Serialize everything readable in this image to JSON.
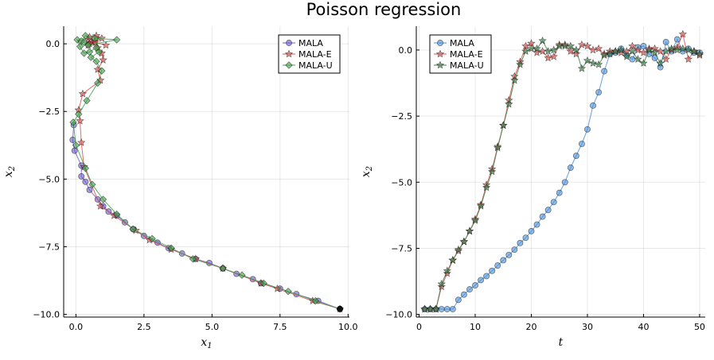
{
  "title": "Poisson regression",
  "colors": {
    "MALA": "#6a5acd",
    "MALA-E": "#d9534f",
    "MALA-U": "#3fa04a",
    "MALA_t": "#4a90d9",
    "MALA-E_t": "#d9534f",
    "MALA-U_t": "#3a7d44"
  },
  "chart_data": [
    {
      "type": "line",
      "xlabel": "x",
      "xlabel_sub": "1",
      "ylabel": "x",
      "ylabel_sub": "2",
      "xlim": [
        -0.45,
        10.05
      ],
      "ylim": [
        -10.1,
        0.65
      ],
      "xticks": [
        0.0,
        2.5,
        5.0,
        7.5,
        10.0
      ],
      "xtick_labels": [
        "0.0",
        "2.5",
        "5.0",
        "7.5",
        "10.0"
      ],
      "yticks": [
        0.0,
        -2.5,
        -5.0,
        -7.5,
        -10.0
      ],
      "ytick_labels": [
        "0.0",
        "−2.5",
        "−5.0",
        "−7.5",
        "−10.0"
      ],
      "legend": {
        "position": "top-right",
        "entries": [
          "MALA",
          "MALA-E",
          "MALA-U"
        ]
      },
      "series": [
        {
          "name": "MALA",
          "marker": "circle",
          "x": [
            9.7,
            8.9,
            8.1,
            7.5,
            6.8,
            6.5,
            5.9,
            5.4,
            4.9,
            4.4,
            3.9,
            3.4,
            3.0,
            2.5,
            2.1,
            1.8,
            1.5,
            1.2,
            1.0,
            0.8,
            0.5,
            0.35,
            0.2,
            0.2,
            -0.05,
            -0.12,
            -0.08
          ],
          "y": [
            -9.8,
            -9.5,
            -9.25,
            -9.05,
            -8.85,
            -8.7,
            -8.5,
            -8.3,
            -8.1,
            -7.95,
            -7.75,
            -7.55,
            -7.35,
            -7.1,
            -6.85,
            -6.6,
            -6.35,
            -6.2,
            -6.0,
            -5.75,
            -5.4,
            -5.1,
            -4.9,
            -4.5,
            -3.95,
            -3.55,
            -3.0
          ]
        },
        {
          "name": "MALA-E",
          "marker": "star",
          "x": [
            9.7,
            8.7,
            7.4,
            6.8,
            5.4,
            4.4,
            3.5,
            2.7,
            2.2,
            1.4,
            0.9,
            0.3,
            0.2,
            0.15,
            0.1,
            0.25,
            0.9,
            0.8,
            1.0,
            0.95,
            0.8,
            0.6,
            0.45,
            0.5,
            0.75,
            0.95,
            0.7,
            0.5,
            0.45,
            0.7,
            1.1
          ],
          "y": [
            -9.8,
            -9.5,
            -9.05,
            -8.85,
            -8.3,
            -7.95,
            -7.6,
            -7.25,
            -6.9,
            -6.35,
            -6.0,
            -4.55,
            -3.65,
            -2.85,
            -2.45,
            -1.85,
            -1.35,
            -0.95,
            -0.6,
            -0.35,
            -0.15,
            0.05,
            0.15,
            0.25,
            0.3,
            0.2,
            0.1,
            0.0,
            -0.05,
            0.05,
            -0.05
          ]
        },
        {
          "name": "MALA-U",
          "marker": "diamond",
          "x": [
            9.7,
            8.8,
            7.8,
            6.9,
            6.1,
            5.4,
            4.3,
            3.5,
            2.8,
            2.1,
            1.5,
            1.0,
            0.6,
            0.35,
            0.0,
            -0.1,
            0.1,
            0.4,
            0.8,
            0.95,
            0.75,
            0.55,
            0.85,
            0.75,
            0.5,
            0.3,
            0.15,
            0.05,
            0.2,
            0.35,
            0.7,
            1.5,
            0.45,
            0.3
          ],
          "y": [
            -9.8,
            -9.5,
            -9.15,
            -8.85,
            -8.55,
            -8.3,
            -7.95,
            -7.55,
            -7.2,
            -6.85,
            -6.3,
            -5.75,
            -5.2,
            -4.6,
            -3.75,
            -2.9,
            -2.6,
            -2.1,
            -1.45,
            -1.0,
            -0.65,
            -0.5,
            -0.3,
            -0.15,
            -0.3,
            -0.35,
            -0.1,
            0.15,
            0.1,
            0.3,
            0.2,
            0.15,
            -0.05,
            0.05
          ]
        }
      ]
    },
    {
      "type": "line",
      "xlabel": "t",
      "ylabel": "x",
      "ylabel_sub": "2",
      "xlim": [
        -0.5,
        51.0
      ],
      "ylim": [
        -10.1,
        0.9
      ],
      "xticks": [
        0,
        10,
        20,
        30,
        40,
        50
      ],
      "xtick_labels": [
        "0",
        "10",
        "20",
        "30",
        "40",
        "50"
      ],
      "yticks": [
        0.0,
        -2.5,
        -5.0,
        -7.5,
        -10.0
      ],
      "ytick_labels": [
        "0.0",
        "−2.5",
        "−5.0",
        "−7.5",
        "−10.0"
      ],
      "legend": {
        "position": "top-left",
        "entries": [
          "MALA",
          "MALA-E",
          "MALA-U"
        ]
      },
      "series": [
        {
          "name": "MALA",
          "marker": "circle",
          "x": [
            1,
            2,
            3,
            4,
            5,
            6,
            7,
            8,
            9,
            10,
            11,
            12,
            13,
            14,
            15,
            16,
            17,
            18,
            19,
            20,
            21,
            22,
            23,
            24,
            25,
            26,
            27,
            28,
            29,
            30,
            31,
            32,
            33,
            34,
            35,
            36,
            37,
            38,
            39,
            40,
            41,
            42,
            43,
            44,
            45,
            46,
            47,
            48,
            49,
            50
          ],
          "y": [
            -9.8,
            -9.8,
            -9.8,
            -9.8,
            -9.8,
            -9.8,
            -9.45,
            -9.25,
            -9.05,
            -8.9,
            -8.7,
            -8.55,
            -8.35,
            -8.15,
            -7.95,
            -7.75,
            -7.55,
            -7.3,
            -7.1,
            -6.85,
            -6.6,
            -6.3,
            -6.05,
            -5.75,
            -5.4,
            -5.0,
            -4.45,
            -4.0,
            -3.55,
            -3.0,
            -2.1,
            -1.6,
            -0.8,
            -0.15,
            -0.1,
            0.05,
            -0.2,
            -0.35,
            0.1,
            0.15,
            -0.15,
            -0.3,
            -0.65,
            0.3,
            -0.05,
            0.4,
            -0.05,
            0.05,
            -0.1,
            -0.1
          ]
        },
        {
          "name": "MALA-E",
          "marker": "star",
          "x": [
            1,
            2,
            3,
            4,
            5,
            6,
            7,
            8,
            9,
            10,
            11,
            12,
            13,
            14,
            15,
            16,
            17,
            18,
            19,
            20,
            21,
            22,
            23,
            24,
            25,
            26,
            27,
            28,
            29,
            30,
            31,
            32,
            33,
            34,
            35,
            36,
            37,
            38,
            39,
            40,
            41,
            42,
            43,
            44,
            45,
            46,
            47,
            48,
            49,
            50
          ],
          "y": [
            -9.8,
            -9.8,
            -9.8,
            -8.95,
            -8.45,
            -7.95,
            -7.6,
            -7.25,
            -6.85,
            -6.4,
            -5.85,
            -5.1,
            -4.5,
            -3.65,
            -2.85,
            -1.9,
            -1.0,
            -0.45,
            0.15,
            0.25,
            -0.1,
            -0.05,
            -0.3,
            -0.25,
            0.2,
            0.2,
            -0.05,
            -0.15,
            0.2,
            0.15,
            0.0,
            0.05,
            -0.15,
            -0.05,
            -0.05,
            -0.1,
            -0.05,
            0.15,
            0.0,
            -0.1,
            0.05,
            0.05,
            -0.05,
            -0.35,
            0.0,
            0.1,
            0.6,
            -0.35,
            -0.05,
            -0.2
          ]
        },
        {
          "name": "MALA-U",
          "marker": "star",
          "x": [
            1,
            2,
            3,
            4,
            5,
            6,
            7,
            8,
            9,
            10,
            11,
            12,
            13,
            14,
            15,
            16,
            17,
            18,
            19,
            20,
            21,
            22,
            23,
            24,
            25,
            26,
            27,
            28,
            29,
            30,
            31,
            32,
            33,
            34,
            35,
            36,
            37,
            38,
            39,
            40,
            41,
            42,
            43,
            44,
            45,
            46,
            47,
            48,
            49,
            50
          ],
          "y": [
            -9.8,
            -9.8,
            -9.8,
            -8.85,
            -8.35,
            -7.95,
            -7.55,
            -7.25,
            -6.85,
            -6.45,
            -5.9,
            -5.2,
            -4.6,
            -3.7,
            -2.85,
            -2.05,
            -1.15,
            -0.55,
            -0.05,
            0.05,
            0.05,
            0.35,
            -0.05,
            0.0,
            0.15,
            0.15,
            0.15,
            0.0,
            -0.7,
            -0.4,
            -0.5,
            -0.55,
            -0.2,
            -0.15,
            -0.05,
            0.0,
            -0.25,
            -0.05,
            -0.35,
            -0.5,
            0.0,
            -0.1,
            -0.5,
            -0.05,
            0.05,
            0.0,
            0.05,
            0.0,
            -0.05,
            -0.15
          ]
        }
      ]
    }
  ]
}
